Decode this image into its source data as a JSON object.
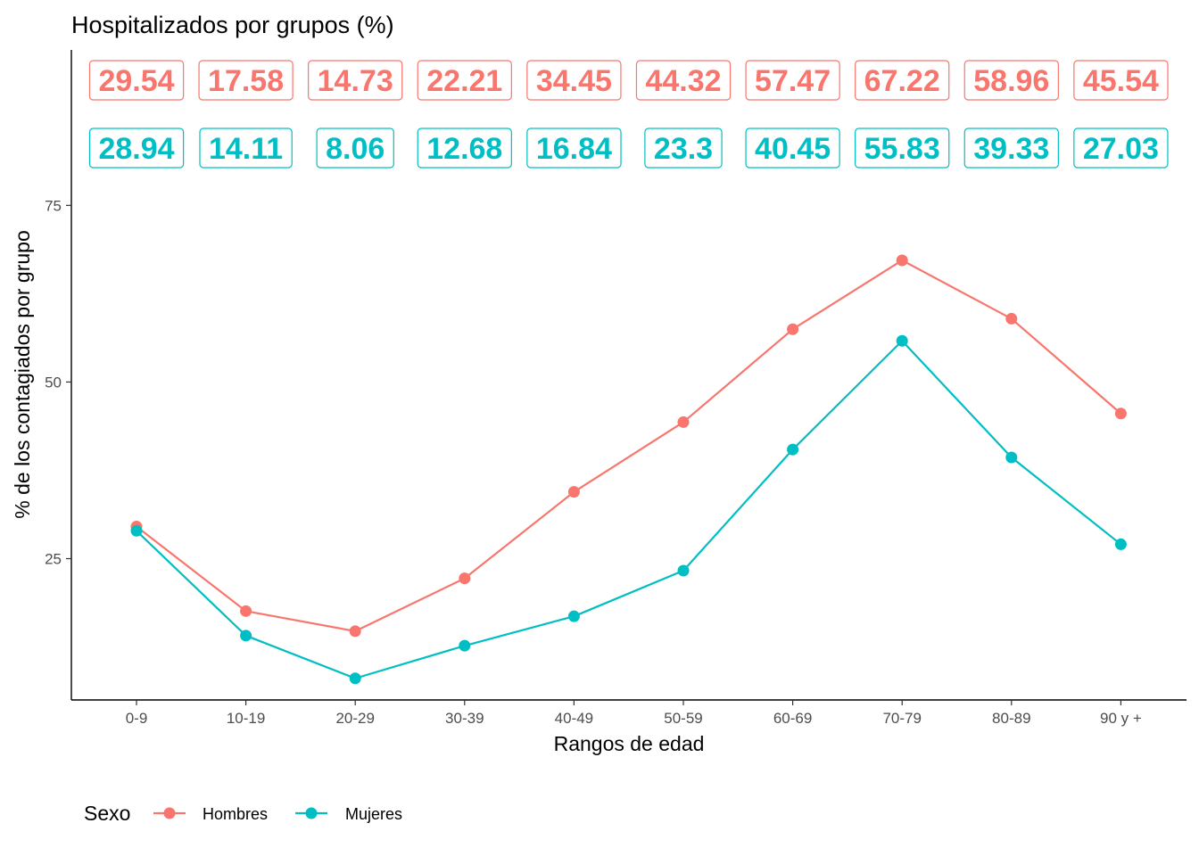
{
  "chart_data": {
    "type": "line",
    "title": "Hospitalizados por grupos (%)",
    "xlabel": "Rangos de edad",
    "ylabel": "% de los contagiados por grupo",
    "categories": [
      "0-9",
      "10-19",
      "20-29",
      "30-39",
      "40-49",
      "50-59",
      "60-69",
      "70-79",
      "80-89",
      "90 y +"
    ],
    "ylim": [
      5,
      97
    ],
    "yticks": [
      25,
      50,
      75
    ],
    "grid": false,
    "legend": {
      "title": "Sexo",
      "placement": "bottom-left"
    },
    "series": [
      {
        "name": "Hombres",
        "color": "#F8766D",
        "values": [
          29.54,
          17.58,
          14.73,
          22.21,
          34.45,
          44.32,
          57.47,
          67.22,
          58.96,
          45.54
        ],
        "labels": [
          "29.54",
          "17.58",
          "14.73",
          "22.21",
          "34.45",
          "44.32",
          "57.47",
          "67.22",
          "58.96",
          "45.54"
        ]
      },
      {
        "name": "Mujeres",
        "color": "#00BFC4",
        "values": [
          28.94,
          14.11,
          8.06,
          12.68,
          16.84,
          23.3,
          40.45,
          55.83,
          39.33,
          27.03
        ],
        "labels": [
          "28.94",
          "14.11",
          "8.06",
          "12.68",
          "16.84",
          "23.3",
          "40.45",
          "55.83",
          "39.33",
          "27.03"
        ]
      }
    ]
  }
}
